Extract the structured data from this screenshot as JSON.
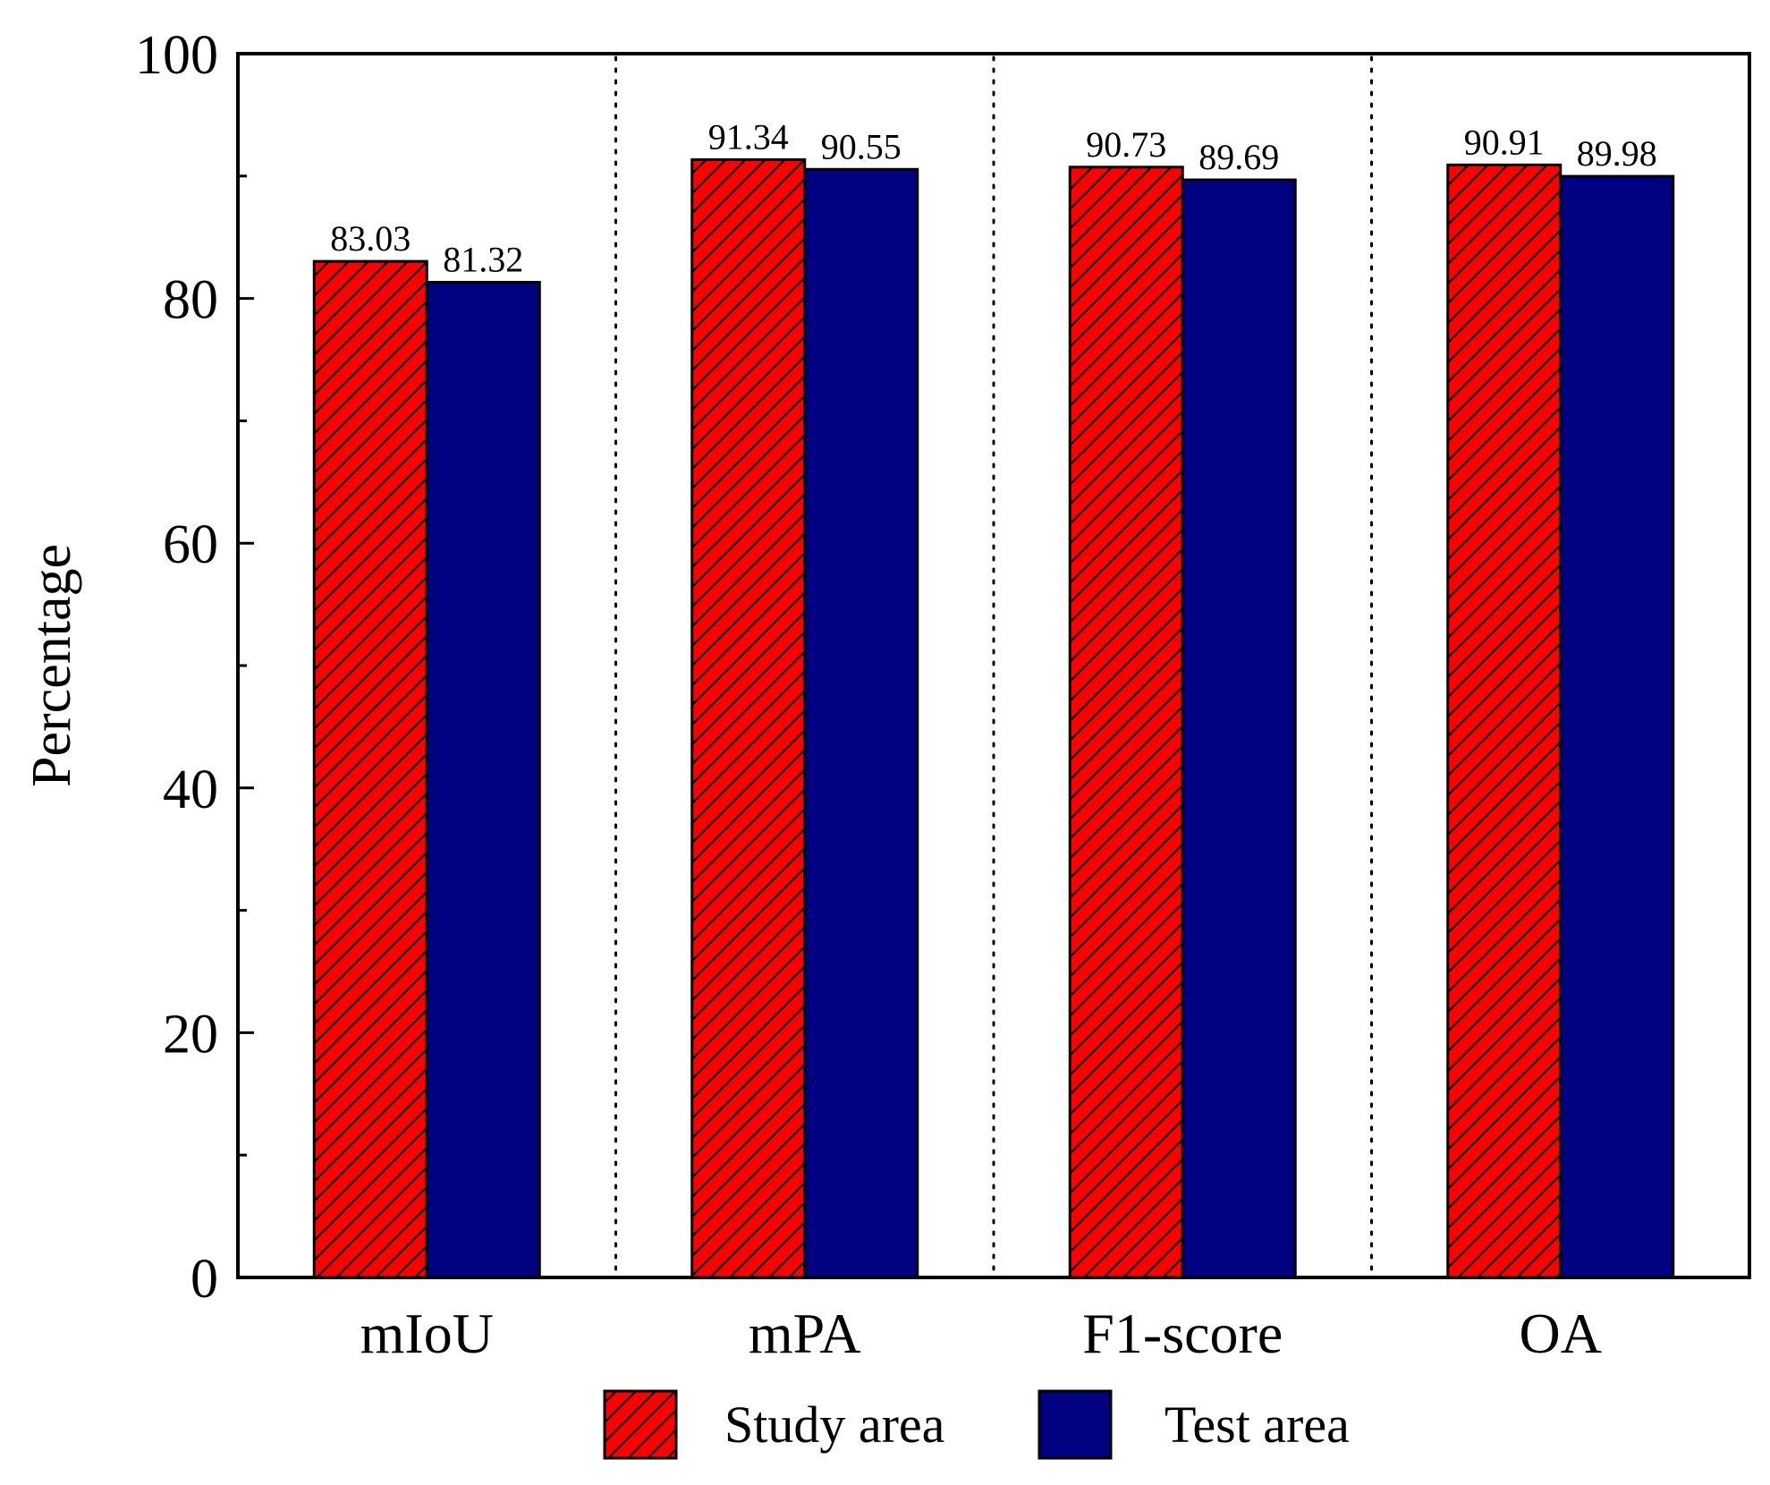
{
  "chart_data": {
    "type": "bar",
    "title": "",
    "xlabel": "",
    "ylabel": "Percentage",
    "ylim": [
      0,
      100
    ],
    "yticks": [
      "0",
      "20",
      "40",
      "60",
      "80",
      "100"
    ],
    "categories": [
      "mIoU",
      "mPA",
      "F1-score",
      "OA"
    ],
    "series": [
      {
        "name": "Study area",
        "values": [
          83.03,
          91.34,
          90.73,
          90.91
        ],
        "labels": [
          "83.03",
          "91.34",
          "90.73",
          "90.91"
        ],
        "color": "#ff0000",
        "pattern": "diagonal-hatch"
      },
      {
        "name": "Test area",
        "values": [
          81.32,
          90.55,
          89.69,
          89.98
        ],
        "labels": [
          "81.32",
          "90.55",
          "89.69",
          "89.98"
        ],
        "color": "#000080",
        "pattern": "solid"
      }
    ],
    "legend": "bottom-center",
    "grid": false,
    "group_separators": "dotted"
  }
}
